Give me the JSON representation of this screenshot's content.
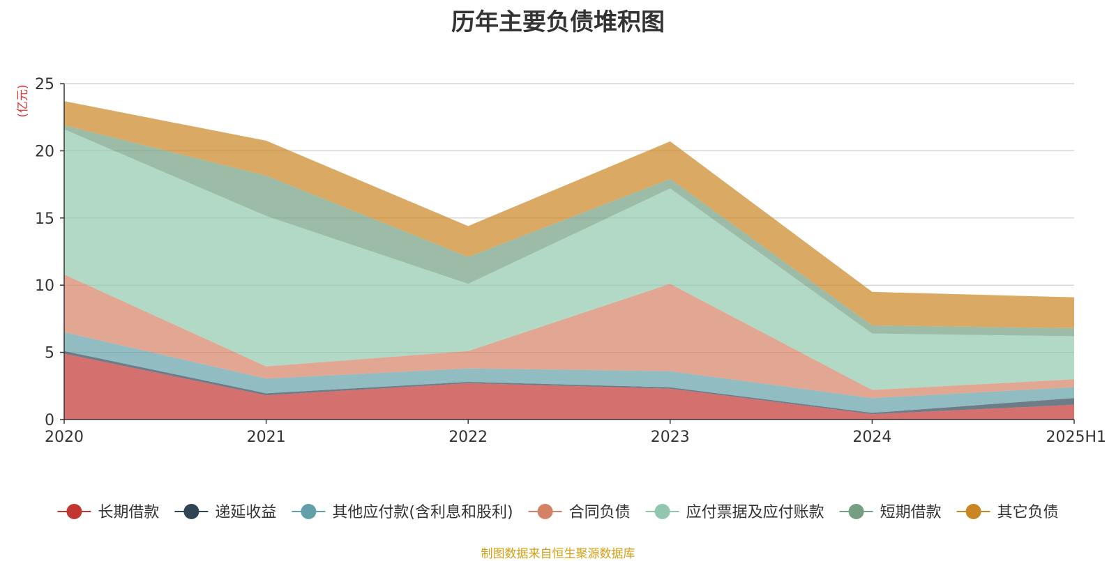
{
  "chart_data": {
    "type": "area",
    "stacked": true,
    "title": "历年主要负债堆积图",
    "unit_label": "(亿元)",
    "categories": [
      "2020",
      "2021",
      "2022",
      "2023",
      "2024",
      "2025H1"
    ],
    "ylim": [
      0,
      25
    ],
    "yticks": [
      0,
      5,
      10,
      15,
      20,
      25
    ],
    "grid": true,
    "legend_position": "bottom",
    "series": [
      {
        "name": "长期借款",
        "color": "#c23531",
        "values": [
          4.9,
          1.8,
          2.7,
          2.3,
          0.4,
          1.1
        ]
      },
      {
        "name": "递延收益",
        "color": "#2f4554",
        "values": [
          0.2,
          0.15,
          0.1,
          0.1,
          0.1,
          0.5
        ]
      },
      {
        "name": "其他应付款(含利息和股利)",
        "color": "#61a0a8",
        "values": [
          1.4,
          1.1,
          1.0,
          1.2,
          1.1,
          0.8
        ]
      },
      {
        "name": "合同负债",
        "color": "#d48265",
        "values": [
          4.3,
          0.9,
          1.3,
          6.5,
          0.6,
          0.6
        ]
      },
      {
        "name": "应付票据及应付账款",
        "color": "#91c7ae",
        "values": [
          10.8,
          11.2,
          5.0,
          7.1,
          4.2,
          3.2
        ]
      },
      {
        "name": "短期借款",
        "color": "#749f83",
        "values": [
          0.3,
          3.0,
          2.0,
          0.7,
          0.6,
          0.6
        ]
      },
      {
        "name": "其它负债",
        "color": "#ca8622",
        "values": [
          1.8,
          2.6,
          2.3,
          2.8,
          2.5,
          2.3
        ]
      }
    ]
  },
  "source_note": "制图数据来自恒生聚源数据库"
}
